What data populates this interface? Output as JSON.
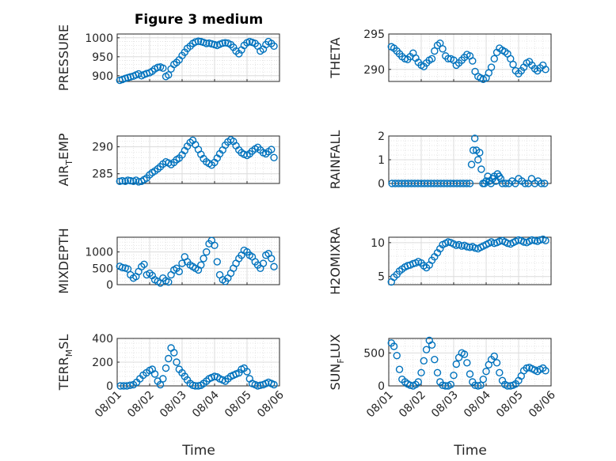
{
  "figure_title": "Figure 3 medium",
  "colors": {
    "marker": "#0072BD",
    "axis": "#262626",
    "grid": "#dcdcdc",
    "background": "#ffffff"
  },
  "x_tick_labels": [
    "08/01",
    "08/02",
    "08/03",
    "08/04",
    "08/05",
    "08/06"
  ],
  "x_label": "Time",
  "chart_data": [
    {
      "type": "scatter",
      "title": "Figure 3 medium",
      "ylabel": "PRESSURE",
      "ylim": [
        885,
        1010
      ],
      "yticks": [
        900,
        950,
        1000
      ],
      "grid": true,
      "xlim": [
        "2023-08-01",
        "2023-08-06"
      ],
      "x": [
        1.08,
        1.16,
        1.25,
        1.33,
        1.41,
        1.5,
        1.58,
        1.66,
        1.75,
        1.83,
        1.91,
        2.0,
        2.08,
        2.16,
        2.25,
        2.33,
        2.41,
        2.5,
        2.58,
        2.66,
        2.75,
        2.83,
        2.91,
        3.0,
        3.08,
        3.16,
        3.25,
        3.33,
        3.41,
        3.5,
        3.58,
        3.66,
        3.75,
        3.83,
        3.91,
        4.0,
        4.08,
        4.16,
        4.25,
        4.33,
        4.41,
        4.5,
        4.58,
        4.66,
        4.75,
        4.83,
        4.91,
        5.0,
        5.08,
        5.16,
        5.25,
        5.33,
        5.41,
        5.5,
        5.58,
        5.66,
        5.75,
        5.83
      ],
      "y": [
        888,
        890,
        893,
        895,
        897,
        899,
        902,
        905,
        900,
        903,
        906,
        908,
        912,
        918,
        922,
        923,
        920,
        898,
        902,
        918,
        930,
        935,
        942,
        953,
        962,
        972,
        978,
        985,
        989,
        991,
        990,
        988,
        985,
        986,
        984,
        982,
        980,
        983,
        986,
        987,
        986,
        982,
        975,
        965,
        958,
        968,
        980,
        987,
        990,
        988,
        985,
        978,
        965,
        970,
        982,
        990,
        985,
        978
      ]
    },
    {
      "type": "scatter",
      "title": "",
      "ylabel": "THETA",
      "ylim": [
        288.3,
        295
      ],
      "yticks": [
        290,
        295
      ],
      "grid": true,
      "xlim": [
        "2023-08-01",
        "2023-08-06"
      ],
      "x": [
        1.08,
        1.16,
        1.25,
        1.33,
        1.41,
        1.5,
        1.58,
        1.66,
        1.75,
        1.83,
        1.91,
        2.0,
        2.08,
        2.16,
        2.25,
        2.33,
        2.41,
        2.5,
        2.58,
        2.66,
        2.75,
        2.83,
        2.91,
        3.0,
        3.08,
        3.16,
        3.25,
        3.33,
        3.41,
        3.5,
        3.58,
        3.66,
        3.75,
        3.83,
        3.91,
        4.0,
        4.08,
        4.16,
        4.25,
        4.33,
        4.41,
        4.5,
        4.58,
        4.66,
        4.75,
        4.83,
        4.91,
        5.0,
        5.08,
        5.16,
        5.25,
        5.33,
        5.41,
        5.5,
        5.58,
        5.66,
        5.75,
        5.83
      ],
      "y": [
        293.2,
        293.0,
        292.6,
        292.2,
        291.8,
        291.5,
        291.4,
        291.8,
        292.3,
        291.6,
        291.0,
        290.6,
        290.4,
        290.9,
        291.3,
        291.5,
        292.6,
        293.4,
        293.7,
        292.9,
        291.9,
        291.5,
        291.5,
        291.3,
        290.6,
        290.9,
        291.3,
        291.7,
        292.1,
        291.9,
        291.2,
        289.7,
        289.0,
        288.8,
        288.6,
        288.8,
        289.5,
        290.3,
        291.5,
        292.4,
        293.0,
        292.7,
        292.5,
        292.2,
        291.5,
        290.7,
        289.8,
        289.4,
        289.8,
        290.3,
        290.9,
        291.1,
        290.6,
        290.1,
        289.8,
        290.2,
        290.6,
        290.0
      ]
    },
    {
      "type": "scatter",
      "title": "",
      "ylabel": "AIR_TEMP",
      "ylim": [
        283.2,
        292
      ],
      "yticks": [
        285,
        290
      ],
      "grid": true,
      "xlim": [
        "2023-08-01",
        "2023-08-06"
      ],
      "x": [
        1.08,
        1.16,
        1.25,
        1.33,
        1.41,
        1.5,
        1.58,
        1.66,
        1.75,
        1.83,
        1.91,
        2.0,
        2.08,
        2.16,
        2.25,
        2.33,
        2.41,
        2.5,
        2.58,
        2.66,
        2.75,
        2.83,
        2.91,
        3.0,
        3.08,
        3.16,
        3.25,
        3.33,
        3.41,
        3.5,
        3.58,
        3.66,
        3.75,
        3.83,
        3.91,
        4.0,
        4.08,
        4.16,
        4.25,
        4.33,
        4.41,
        4.5,
        4.58,
        4.66,
        4.75,
        4.83,
        4.91,
        5.0,
        5.08,
        5.16,
        5.25,
        5.33,
        5.41,
        5.5,
        5.58,
        5.66,
        5.75,
        5.83
      ],
      "y": [
        283.6,
        283.7,
        283.6,
        283.8,
        283.7,
        283.6,
        283.8,
        283.5,
        283.6,
        283.9,
        284.2,
        284.8,
        285.2,
        285.5,
        285.9,
        286.3,
        286.8,
        287.2,
        287.0,
        286.7,
        287.1,
        287.6,
        287.9,
        288.5,
        289.3,
        290.1,
        290.8,
        291.2,
        290.4,
        289.5,
        288.6,
        287.8,
        287.2,
        286.9,
        286.6,
        287.1,
        287.9,
        288.7,
        289.4,
        290.3,
        290.9,
        291.3,
        291.0,
        290.2,
        289.4,
        288.9,
        288.6,
        288.4,
        288.7,
        289.2,
        289.6,
        289.9,
        289.4,
        288.9,
        288.7,
        289.1,
        289.5,
        288.0
      ]
    },
    {
      "type": "scatter",
      "title": "",
      "ylabel": "RAINFALL",
      "ylim": [
        0,
        2
      ],
      "yticks": [
        0,
        1,
        2
      ],
      "grid": true,
      "xlim": [
        "2023-08-01",
        "2023-08-06"
      ],
      "x": [
        1.1,
        1.2,
        1.3,
        1.4,
        1.5,
        1.6,
        1.7,
        1.8,
        1.9,
        2.0,
        2.1,
        2.2,
        2.3,
        2.4,
        2.5,
        2.6,
        2.7,
        2.8,
        2.9,
        3.0,
        3.1,
        3.2,
        3.3,
        3.4,
        3.5,
        3.55,
        3.6,
        3.65,
        3.7,
        3.75,
        3.8,
        3.85,
        3.9,
        3.95,
        4.0,
        4.05,
        4.1,
        4.15,
        4.2,
        4.25,
        4.3,
        4.35,
        4.4,
        4.45,
        4.5,
        4.6,
        4.7,
        4.8,
        4.9,
        5.0,
        5.1,
        5.2,
        5.3,
        5.4,
        5.5,
        5.6,
        5.7,
        5.8
      ],
      "y": [
        0,
        0,
        0,
        0,
        0,
        0,
        0,
        0,
        0,
        0,
        0,
        0,
        0,
        0,
        0,
        0,
        0,
        0,
        0,
        0,
        0,
        0,
        0,
        0,
        0,
        0.8,
        1.4,
        1.9,
        1.4,
        1.0,
        1.3,
        0.6,
        0,
        0,
        0.1,
        0.3,
        0.1,
        0,
        0.2,
        0.3,
        0.1,
        0.4,
        0.3,
        0.2,
        0,
        0,
        0,
        0.1,
        0,
        0.2,
        0.1,
        0,
        0,
        0.2,
        0,
        0.1,
        0,
        0
      ]
    },
    {
      "type": "scatter",
      "title": "",
      "ylabel": "MIXDEPTH",
      "ylim": [
        0,
        1450
      ],
      "yticks": [
        0,
        500,
        1000
      ],
      "grid": true,
      "xlim": [
        "2023-08-01",
        "2023-08-06"
      ],
      "x": [
        1.08,
        1.16,
        1.25,
        1.33,
        1.41,
        1.5,
        1.58,
        1.66,
        1.75,
        1.83,
        1.91,
        2.0,
        2.08,
        2.16,
        2.25,
        2.33,
        2.41,
        2.5,
        2.58,
        2.66,
        2.75,
        2.83,
        2.91,
        3.0,
        3.08,
        3.16,
        3.25,
        3.33,
        3.41,
        3.5,
        3.58,
        3.66,
        3.75,
        3.83,
        3.91,
        4.0,
        4.08,
        4.16,
        4.25,
        4.33,
        4.41,
        4.5,
        4.58,
        4.66,
        4.75,
        4.83,
        4.91,
        5.0,
        5.08,
        5.16,
        5.25,
        5.33,
        5.41,
        5.5,
        5.58,
        5.66,
        5.75,
        5.83
      ],
      "y": [
        560,
        520,
        510,
        480,
        300,
        200,
        250,
        400,
        550,
        620,
        300,
        350,
        280,
        150,
        100,
        50,
        200,
        120,
        80,
        300,
        450,
        500,
        400,
        650,
        850,
        700,
        600,
        550,
        500,
        450,
        600,
        800,
        1000,
        1250,
        1350,
        1200,
        700,
        300,
        150,
        100,
        200,
        350,
        500,
        650,
        800,
        900,
        1050,
        1000,
        900,
        850,
        700,
        600,
        500,
        650,
        900,
        950,
        800,
        550
      ]
    },
    {
      "type": "scatter",
      "title": "",
      "ylabel": "H2OMIXRA",
      "ylim": [
        3.8,
        10.8
      ],
      "yticks": [
        5,
        10
      ],
      "grid": true,
      "xlim": [
        "2023-08-01",
        "2023-08-06"
      ],
      "x": [
        1.08,
        1.16,
        1.25,
        1.33,
        1.41,
        1.5,
        1.58,
        1.66,
        1.75,
        1.83,
        1.91,
        2.0,
        2.08,
        2.16,
        2.25,
        2.33,
        2.41,
        2.5,
        2.58,
        2.66,
        2.75,
        2.83,
        2.91,
        3.0,
        3.08,
        3.16,
        3.25,
        3.33,
        3.41,
        3.5,
        3.58,
        3.66,
        3.75,
        3.83,
        3.91,
        4.0,
        4.08,
        4.16,
        4.25,
        4.33,
        4.41,
        4.5,
        4.58,
        4.66,
        4.75,
        4.83,
        4.91,
        5.0,
        5.08,
        5.16,
        5.25,
        5.33,
        5.41,
        5.5,
        5.58,
        5.66,
        5.75,
        5.83
      ],
      "y": [
        4.2,
        4.9,
        5.3,
        5.8,
        6.1,
        6.4,
        6.6,
        6.7,
        6.9,
        7.0,
        7.2,
        7.0,
        6.6,
        6.3,
        6.7,
        7.4,
        7.9,
        8.5,
        9.1,
        9.7,
        9.9,
        10.1,
        10.0,
        9.8,
        9.6,
        9.7,
        9.5,
        9.6,
        9.4,
        9.3,
        9.4,
        9.2,
        9.1,
        9.3,
        9.5,
        9.7,
        9.9,
        10.1,
        9.9,
        10.0,
        10.2,
        10.3,
        10.1,
        9.9,
        9.8,
        10.0,
        10.2,
        10.4,
        10.3,
        10.1,
        10.0,
        10.2,
        10.4,
        10.3,
        10.2,
        10.4,
        10.5,
        10.3
      ]
    },
    {
      "type": "scatter",
      "title": "",
      "ylabel": "TERR_MSL",
      "ylim": [
        0,
        400
      ],
      "yticks": [
        0,
        200,
        400
      ],
      "grid": true,
      "xlim": [
        "2023-08-01",
        "2023-08-06"
      ],
      "x": [
        1.1,
        1.2,
        1.3,
        1.4,
        1.5,
        1.6,
        1.7,
        1.8,
        1.9,
        2.0,
        2.08,
        2.16,
        2.25,
        2.33,
        2.41,
        2.5,
        2.58,
        2.66,
        2.75,
        2.83,
        2.91,
        3.0,
        3.08,
        3.16,
        3.25,
        3.33,
        3.41,
        3.5,
        3.58,
        3.66,
        3.75,
        3.83,
        3.91,
        4.0,
        4.08,
        4.16,
        4.25,
        4.33,
        4.41,
        4.5,
        4.58,
        4.66,
        4.75,
        4.83,
        4.91,
        5.0,
        5.08,
        5.16,
        5.25,
        5.33,
        5.41,
        5.5,
        5.58,
        5.66,
        5.75,
        5.83
      ],
      "y": [
        0,
        0,
        0,
        5,
        10,
        30,
        60,
        90,
        110,
        130,
        140,
        100,
        40,
        10,
        60,
        150,
        230,
        320,
        280,
        200,
        140,
        110,
        80,
        50,
        20,
        5,
        0,
        0,
        5,
        20,
        40,
        60,
        70,
        80,
        75,
        60,
        50,
        40,
        60,
        80,
        90,
        100,
        110,
        140,
        150,
        120,
        60,
        20,
        10,
        0,
        5,
        10,
        20,
        30,
        20,
        10
      ]
    },
    {
      "type": "scatter",
      "title": "",
      "ylabel": "SUN_FLUX",
      "ylim": [
        0,
        720
      ],
      "yticks": [
        0,
        500
      ],
      "grid": true,
      "xlim": [
        "2023-08-01",
        "2023-08-06"
      ],
      "x": [
        1.08,
        1.16,
        1.25,
        1.33,
        1.41,
        1.5,
        1.58,
        1.66,
        1.75,
        1.83,
        1.91,
        2.0,
        2.08,
        2.16,
        2.25,
        2.33,
        2.41,
        2.5,
        2.58,
        2.66,
        2.75,
        2.83,
        2.91,
        3.0,
        3.08,
        3.16,
        3.25,
        3.33,
        3.41,
        3.5,
        3.58,
        3.66,
        3.75,
        3.83,
        3.91,
        4.0,
        4.08,
        4.16,
        4.25,
        4.33,
        4.41,
        4.5,
        4.58,
        4.66,
        4.75,
        4.83,
        4.91,
        5.0,
        5.08,
        5.16,
        5.25,
        5.33,
        5.41,
        5.5,
        5.58,
        5.66,
        5.75,
        5.83
      ],
      "y": [
        650,
        600,
        460,
        250,
        100,
        60,
        30,
        10,
        0,
        20,
        60,
        200,
        380,
        550,
        690,
        620,
        400,
        200,
        60,
        10,
        0,
        0,
        20,
        160,
        330,
        430,
        500,
        480,
        350,
        180,
        60,
        10,
        0,
        10,
        100,
        220,
        320,
        400,
        450,
        350,
        200,
        80,
        20,
        0,
        0,
        10,
        30,
        80,
        150,
        230,
        270,
        280,
        260,
        240,
        220,
        250,
        270,
        230
      ]
    }
  ]
}
